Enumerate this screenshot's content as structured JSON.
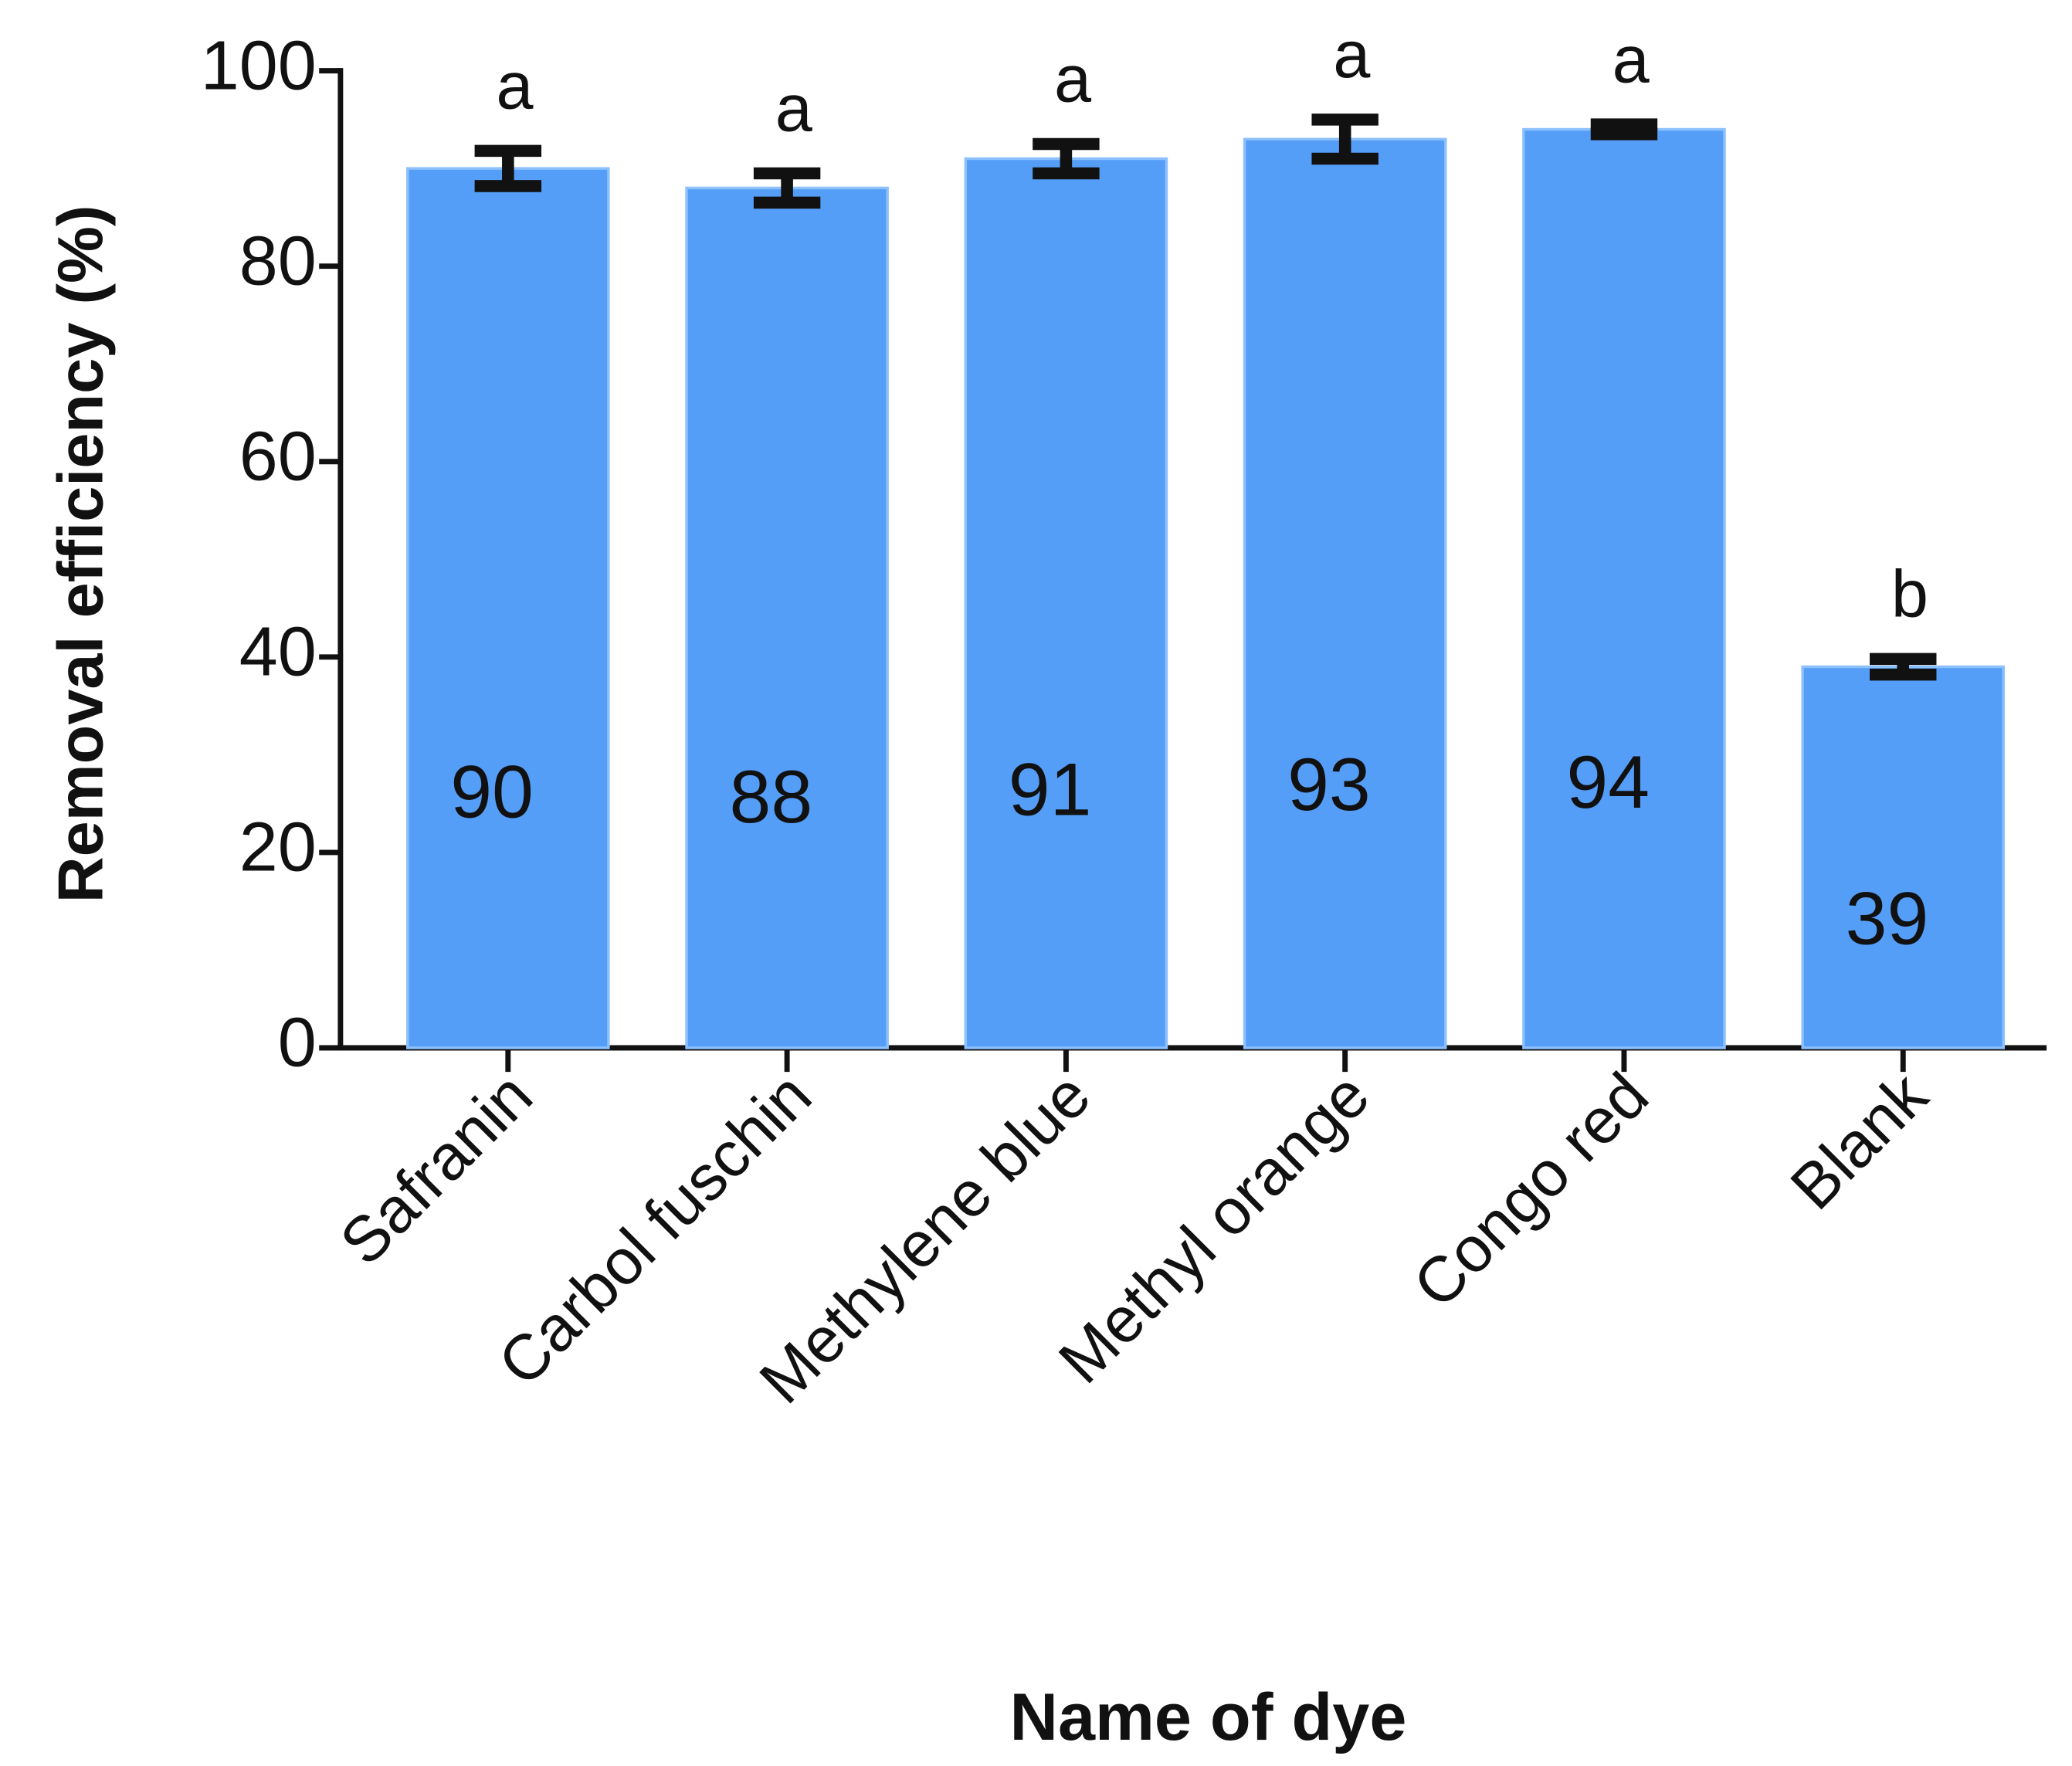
{
  "chart_data": {
    "type": "bar",
    "categories": [
      "Safranin",
      "Carbol fuschin",
      "Methylene blue",
      "Methyl orange",
      "Congo red",
      "Blank"
    ],
    "values": [
      90,
      88,
      91,
      93,
      94,
      39
    ],
    "errors": [
      1.8,
      1.5,
      1.5,
      2,
      0.5,
      0.8
    ],
    "annotations": [
      "a",
      "a",
      "a",
      "a",
      "a",
      "b"
    ],
    "color": "#559ef8",
    "xlabel": "Name of dye",
    "ylabel": "Removal efficiency (%)",
    "ylim": [
      0,
      100
    ],
    "yticks": [
      0,
      20,
      40,
      60,
      80,
      100
    ],
    "grid": false
  }
}
